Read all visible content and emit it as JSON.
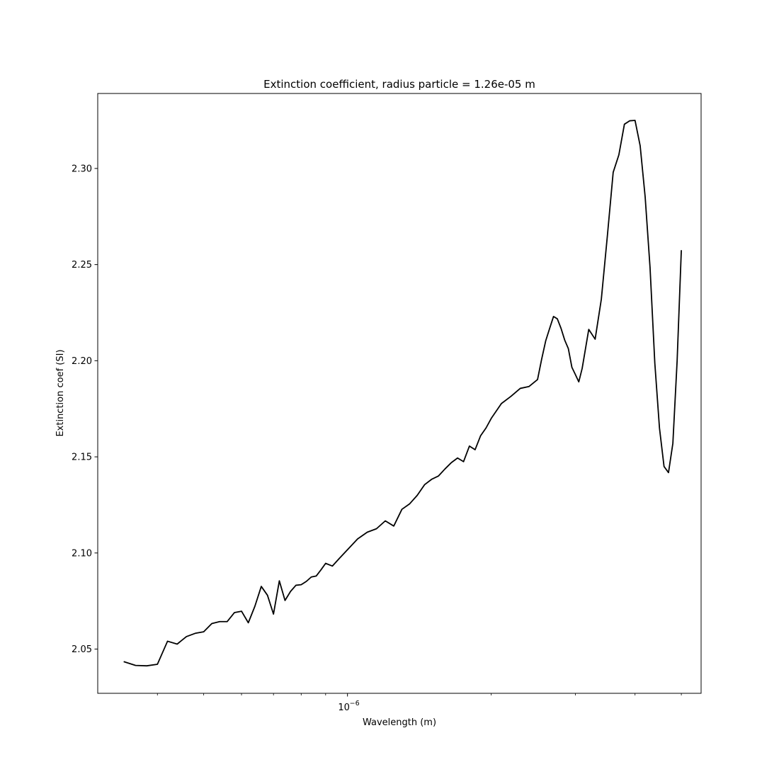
{
  "chart_data": {
    "type": "line",
    "title": "Extinction coefficient, radius particle = 1.26e-05 m",
    "xlabel": "Wavelength (m)",
    "ylabel": "Extinction coef (SI)",
    "xscale": "log",
    "xlim": [
      3e-07,
      5.5e-06
    ],
    "ylim": [
      2.027,
      2.339
    ],
    "grid": false,
    "legend": "none",
    "line_color": "#000000",
    "x_tick_labels": [
      {
        "value": 1e-06,
        "label": "10",
        "exponent": "−6"
      }
    ],
    "y_ticks": [
      {
        "value": 2.05,
        "label": "2.05"
      },
      {
        "value": 2.1,
        "label": "2.10"
      },
      {
        "value": 2.15,
        "label": "2.15"
      },
      {
        "value": 2.2,
        "label": "2.20"
      },
      {
        "value": 2.25,
        "label": "2.25"
      },
      {
        "value": 2.3,
        "label": "2.30"
      }
    ],
    "x_minor_ticks": [
      4e-07,
      5e-07,
      6e-07,
      7e-07,
      8e-07,
      9e-07,
      2e-06,
      3e-06,
      4e-06,
      5e-06
    ],
    "series": [
      {
        "x": [
          3.4e-07,
          3.6e-07,
          3.8e-07,
          4e-07,
          4.2e-07,
          4.4e-07,
          4.6e-07,
          4.8e-07,
          5e-07,
          5.2e-07,
          5.4e-07,
          5.6e-07,
          5.8e-07,
          6e-07,
          6.2e-07,
          6.4e-07,
          6.6e-07,
          6.8e-07,
          7e-07,
          7.2e-07,
          7.4e-07,
          7.6e-07,
          7.8e-07,
          8e-07,
          8.2e-07,
          8.4e-07,
          8.6e-07,
          8.8e-07,
          9e-07,
          9.3e-07,
          9.6e-07,
          1e-06,
          1.05e-06,
          1.1e-06,
          1.15e-06,
          1.2e-06,
          1.25e-06,
          1.3e-06,
          1.35e-06,
          1.4e-06,
          1.45e-06,
          1.5e-06,
          1.55e-06,
          1.6e-06,
          1.65e-06,
          1.7e-06,
          1.75e-06,
          1.8e-06,
          1.85e-06,
          1.9e-06,
          1.95e-06,
          2e-06,
          2.1e-06,
          2.2e-06,
          2.3e-06,
          2.4e-06,
          2.5e-06,
          2.55e-06,
          2.6e-06,
          2.65e-06,
          2.7e-06,
          2.75e-06,
          2.8e-06,
          2.85e-06,
          2.9e-06,
          2.95e-06,
          3e-06,
          3.05e-06,
          3.1e-06,
          3.2e-06,
          3.3e-06,
          3.4e-06,
          3.5e-06,
          3.6e-06,
          3.7e-06,
          3.8e-06,
          3.9e-06,
          4e-06,
          4.1e-06,
          4.2e-06,
          4.3e-06,
          4.4e-06,
          4.5e-06,
          4.6e-06,
          4.7e-06,
          4.8e-06,
          4.9e-06,
          5e-06
        ],
        "y": [
          2.0435,
          2.0415,
          2.0413,
          2.0421,
          2.0541,
          2.0526,
          2.0565,
          2.0582,
          2.059,
          2.0633,
          2.0643,
          2.0643,
          2.069,
          2.0697,
          2.0637,
          2.0723,
          2.0826,
          2.078,
          2.0682,
          2.0855,
          2.0753,
          2.08,
          2.0832,
          2.0835,
          2.0852,
          2.0875,
          2.088,
          2.0912,
          2.0946,
          2.0932,
          2.097,
          2.1017,
          2.1073,
          2.1108,
          2.1126,
          2.1167,
          2.114,
          2.1227,
          2.1256,
          2.13,
          2.1355,
          2.1383,
          2.14,
          2.1437,
          2.147,
          2.1494,
          2.1475,
          2.1556,
          2.1537,
          2.161,
          2.165,
          2.17,
          2.1777,
          2.1815,
          2.1856,
          2.1866,
          2.1902,
          2.2008,
          2.2103,
          2.2168,
          2.223,
          2.2218,
          2.2168,
          2.2107,
          2.2063,
          2.1966,
          2.1928,
          2.189,
          2.196,
          2.2163,
          2.2112,
          2.232,
          2.2648,
          2.298,
          2.3071,
          2.323,
          2.3248,
          2.325,
          2.3118,
          2.2852,
          2.2485,
          2.1988,
          2.165,
          2.145,
          2.1418,
          2.157,
          2.2,
          2.2575
        ]
      }
    ]
  }
}
